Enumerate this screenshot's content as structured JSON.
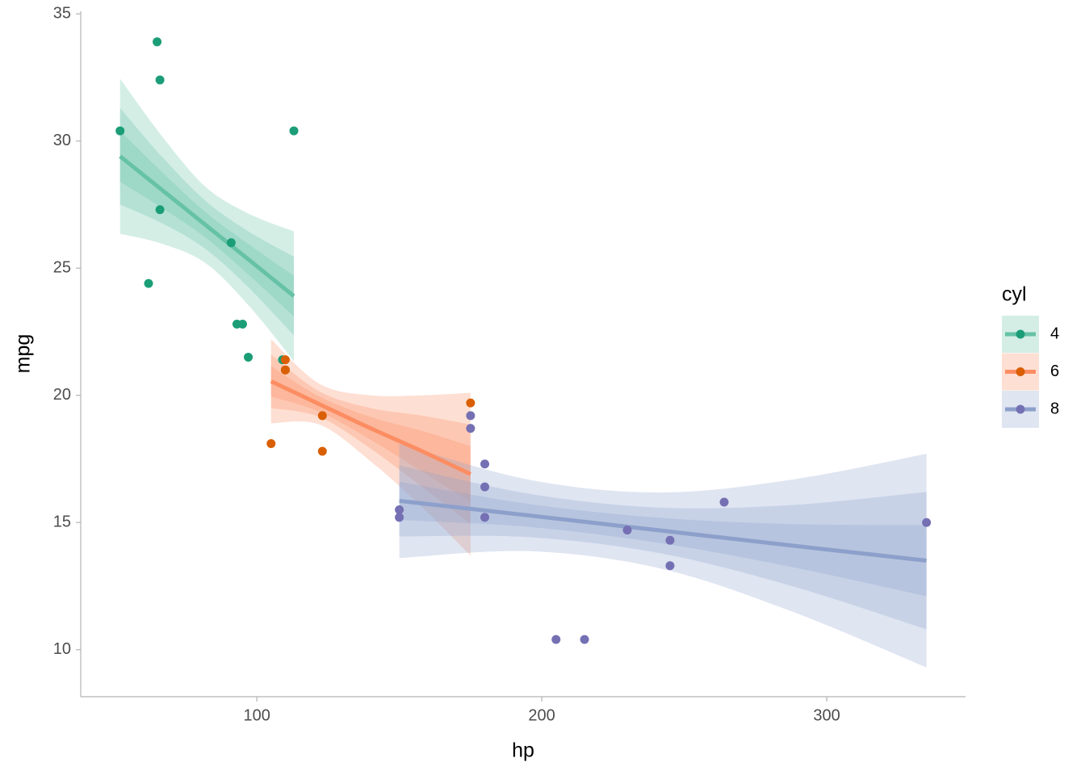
{
  "chart_data": {
    "type": "scatter",
    "x_label": "hp",
    "y_label": "mpg",
    "xlim": [
      38.2,
      348.7
    ],
    "ylim": [
      8.15,
      35.1
    ],
    "xticks": [
      100,
      200,
      300
    ],
    "yticks": [
      10,
      15,
      20,
      25,
      30,
      35
    ],
    "grid": false,
    "legend_title": "cyl",
    "legend_position": "right",
    "series": [
      {
        "name": "4",
        "color": "#1b9e77",
        "line_color": "#66c2a5",
        "x": [
          93,
          62,
          95,
          66,
          52,
          65,
          97,
          66,
          91,
          113,
          109
        ],
        "values": [
          22.8,
          24.4,
          22.8,
          32.4,
          30.4,
          33.9,
          21.5,
          27.3,
          26.0,
          30.4,
          21.4
        ],
        "fit_x": [
          52,
          67,
          82,
          97,
          113
        ],
        "fit_y": [
          29.4,
          28.05,
          26.7,
          25.35,
          23.9
        ],
        "bands": [
          {
            "lower": [
              26.35,
              25.95,
              25.2,
              23.55,
              21.35
            ],
            "upper": [
              32.45,
              30.15,
              28.2,
              27.15,
              26.45
            ]
          },
          {
            "lower": [
              27.5,
              26.75,
              25.75,
              24.25,
              22.35
            ],
            "upper": [
              31.3,
              29.35,
              27.65,
              26.45,
              25.45
            ]
          },
          {
            "lower": [
              28.4,
              27.35,
              26.2,
              24.75,
              23.1
            ],
            "upper": [
              30.4,
              28.75,
              27.2,
              25.95,
              24.7
            ]
          }
        ]
      },
      {
        "name": "6",
        "color": "#d95f02",
        "line_color": "#fc8d62",
        "x": [
          110,
          110,
          110,
          105,
          123,
          123,
          175
        ],
        "values": [
          21.0,
          21.0,
          21.4,
          18.1,
          19.2,
          17.8,
          19.7
        ],
        "fit_x": [
          105,
          122,
          140,
          158,
          175
        ],
        "fit_y": [
          20.55,
          19.65,
          18.7,
          17.8,
          16.9
        ],
        "bands": [
          {
            "lower": [
              18.9,
              18.85,
              17.4,
              15.6,
              13.7
            ],
            "upper": [
              22.2,
              20.45,
              20.0,
              20.0,
              20.1
            ]
          },
          {
            "lower": [
              19.5,
              19.15,
              17.9,
              16.4,
              14.95
            ],
            "upper": [
              21.6,
              20.15,
              19.5,
              19.2,
              18.85
            ]
          },
          {
            "lower": [
              19.95,
              19.35,
              18.25,
              17.0,
              15.8
            ],
            "upper": [
              21.15,
              19.95,
              19.15,
              18.6,
              18.0
            ]
          }
        ]
      },
      {
        "name": "8",
        "color": "#7570b3",
        "line_color": "#8da0cb",
        "x": [
          175,
          245,
          180,
          180,
          180,
          205,
          215,
          230,
          150,
          150,
          245,
          175,
          264,
          335
        ],
        "values": [
          18.7,
          14.3,
          16.4,
          17.3,
          15.2,
          10.4,
          10.4,
          14.7,
          15.5,
          15.2,
          13.3,
          19.2,
          15.8,
          15.0
        ],
        "fit_x": [
          150,
          196,
          242,
          288,
          335
        ],
        "fit_y": [
          15.85,
          15.27,
          14.68,
          14.09,
          13.5
        ],
        "bands": [
          {
            "lower": [
              13.6,
              13.87,
              13.18,
              11.49,
              9.3
            ],
            "upper": [
              18.1,
              16.67,
              16.18,
              16.69,
              17.7
            ]
          },
          {
            "lower": [
              14.45,
              14.42,
              13.78,
              12.49,
              10.8
            ],
            "upper": [
              17.25,
              16.12,
              15.58,
              15.69,
              16.2
            ]
          },
          {
            "lower": [
              15.1,
              14.82,
              14.18,
              13.24,
              12.1
            ],
            "upper": [
              16.6,
              15.72,
              15.18,
              14.94,
              14.9
            ]
          }
        ]
      }
    ]
  }
}
